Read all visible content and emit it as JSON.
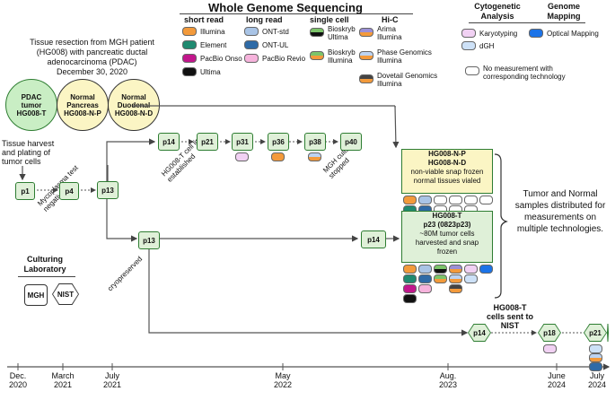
{
  "header": {
    "title": "Whole Genome Sequencing",
    "short_read": "short read",
    "long_read": "long read",
    "single_cell": "single cell",
    "hic": "Hi-C",
    "cytogenetic": "Cytogenetic Analysis",
    "genome_mapping": "Genome Mapping"
  },
  "legend": {
    "illumina": "Illumina",
    "element": "Element",
    "pacbio_onso": "PacBio Onso",
    "ultima": "Ultima",
    "ont_std": "ONT-std",
    "ont_ul": "ONT-UL",
    "pacbio_revio": "PacBio Revio",
    "bioskryb_ultima": "Bioskryb Ultima",
    "bioskryb_illumina": "Bioskryb Illumina",
    "arima": "Arima Illumina",
    "phase": "Phase Genomics Illumina",
    "dovetail": "Dovetail Genomics Illumina",
    "karyotyping": "Karyotyping",
    "dgh": "dGH",
    "optical": "Optical Mapping",
    "none": "No measurement with corresponding technology"
  },
  "colors": {
    "illumina": "#f39a3b",
    "element": "#1f8a70",
    "pacbio_onso": "#c2168c",
    "ultima": "#111111",
    "ont_std": "#a9c4e6",
    "ont_ul": "#2e6aa6",
    "pacbio_revio": "#f6b3dc",
    "karyotyping": "#f1d1f3",
    "dgh": "#cde1f7",
    "optical": "#1b73e8"
  },
  "patient": {
    "line1": "Tissue resection from MGH patient",
    "line2": "(HG008) with pancreatic ductal",
    "line3": "adenocarcinoma (PDAC)",
    "line4": "December 30, 2020"
  },
  "samples": {
    "tumor": [
      "PDAC",
      "tumor",
      "HG008-T"
    ],
    "normal_p": [
      "Normal",
      "Pancreas",
      "HG008-N-P"
    ],
    "normal_d": [
      "Normal",
      "Duodenal",
      "HG008-N-D"
    ]
  },
  "notes": {
    "harvest": [
      "Tissue harvest",
      "and plating of",
      "tumor cells"
    ],
    "mycoplasma": "Mycoplasma test negative",
    "cell_line": "HG008-T cell line established",
    "culture_stopped": "MGH culture stopped",
    "cryopreserved": "cryopreserved",
    "sent": [
      "HG008-T",
      "cells sent to",
      "NIST"
    ],
    "distributed": [
      "Tumor and Normal",
      "samples distributed for",
      "measurements on",
      "multiple technologies."
    ]
  },
  "passages": {
    "p1": "p1",
    "p4": "p4",
    "p13": "p13",
    "p14": "p14",
    "p21": "p21",
    "p31": "p31",
    "p36": "p36",
    "p38": "p38",
    "p40": "p40",
    "p13b": "p13",
    "p14b": "p14",
    "p14c": "p14",
    "p18": "p18",
    "p21b": "p21"
  },
  "normal_box": [
    "HG008-N-P",
    "HG008-N-D",
    "non-viable snap frozen",
    "normal tissues vialed"
  ],
  "tumor_box": [
    "HG008-T",
    "p23 (0823p23)",
    "~80M tumor cells",
    "harvested and snap",
    "frozen"
  ],
  "labs": {
    "title": [
      "Culturing",
      "Laboratory"
    ],
    "mgh": "MGH",
    "nist": "NIST"
  },
  "timeline": [
    [
      "Dec.",
      "2020"
    ],
    [
      "March",
      "2021"
    ],
    [
      "July",
      "2021"
    ],
    [
      "May",
      "2022"
    ],
    [
      "Aug.",
      "2023"
    ],
    [
      "June",
      "2024"
    ],
    [
      "July",
      "2024"
    ]
  ]
}
